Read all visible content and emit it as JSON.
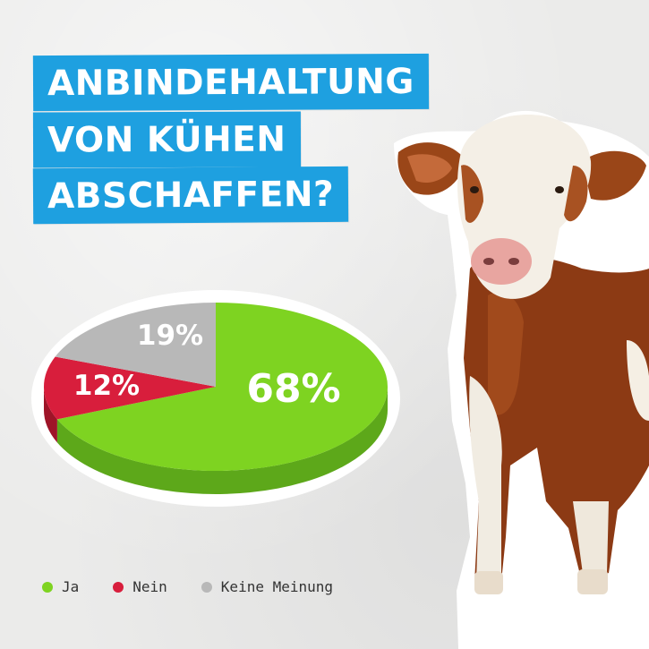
{
  "title": {
    "line1": "ANBINDEHALTUNG",
    "line2": "VON KÜHEN",
    "line3": "ABSCHAFFEN?"
  },
  "colors": {
    "title_bg": "#1ea0e0",
    "ja": "#7ed321",
    "ja_side": "#5da81a",
    "nein": "#d81e3c",
    "nein_side": "#9e1428",
    "keine": "#b8b8b8",
    "keine_side": "#8f8f8f"
  },
  "chart_data": {
    "type": "pie",
    "categories": [
      "Ja",
      "Nein",
      "Keine Meinung"
    ],
    "values": [
      68,
      12,
      19
    ],
    "labels": [
      "68%",
      "12%",
      "19%"
    ],
    "legend_position": "bottom-left"
  },
  "legend": [
    {
      "label": "Ja",
      "color": "#7ed321"
    },
    {
      "label": "Nein",
      "color": "#d81e3c"
    },
    {
      "label": "Keine Meinung",
      "color": "#b8b8b8"
    }
  ],
  "image": {
    "icon": "cow-illustration"
  }
}
